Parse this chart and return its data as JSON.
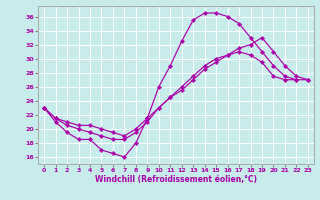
{
  "xlabel": "Windchill (Refroidissement éolien,°C)",
  "bg_color": "#c8ecec",
  "line_color": "#aa00aa",
  "grid_color": "#ffffff",
  "ylim": [
    15.0,
    37.5
  ],
  "xlim": [
    -0.5,
    23.5
  ],
  "yticks": [
    16,
    18,
    20,
    22,
    24,
    26,
    28,
    30,
    32,
    34,
    36
  ],
  "xticks": [
    0,
    1,
    2,
    3,
    4,
    5,
    6,
    7,
    8,
    9,
    10,
    11,
    12,
    13,
    14,
    15,
    16,
    17,
    18,
    19,
    20,
    21,
    22,
    23
  ],
  "curve1_x": [
    0,
    1,
    2,
    3,
    4,
    5,
    6,
    7,
    8,
    9
  ],
  "curve1_y": [
    23.0,
    21.0,
    19.5,
    18.5,
    18.5,
    17.0,
    16.5,
    16.0,
    18.0,
    21.5
  ],
  "curve2_x": [
    9,
    10,
    11,
    12,
    13,
    14,
    15,
    16,
    17,
    18,
    19,
    20,
    21,
    22
  ],
  "curve2_y": [
    21.5,
    26.0,
    29.0,
    32.5,
    35.5,
    36.5,
    36.5,
    36.0,
    35.0,
    33.0,
    31.0,
    29.0,
    27.5,
    27.0
  ],
  "curve3_x": [
    0,
    1,
    2,
    3,
    4,
    5,
    6,
    7,
    8,
    9,
    10,
    11,
    12,
    13,
    14,
    15,
    16,
    17,
    18,
    19,
    20,
    21,
    22,
    23
  ],
  "curve3_y": [
    23.0,
    21.5,
    21.0,
    20.5,
    20.5,
    20.0,
    19.5,
    19.0,
    20.0,
    21.5,
    23.0,
    24.5,
    25.5,
    27.0,
    28.5,
    29.5,
    30.5,
    31.5,
    32.0,
    33.0,
    31.0,
    29.0,
    27.5,
    27.0
  ],
  "curve4_x": [
    0,
    1,
    2,
    3,
    4,
    5,
    6,
    7,
    8,
    9,
    10,
    11,
    12,
    13,
    14,
    15,
    16,
    17,
    18,
    19,
    20,
    21,
    22,
    23
  ],
  "curve4_y": [
    23.0,
    21.5,
    20.5,
    20.0,
    19.5,
    19.0,
    18.5,
    18.5,
    19.5,
    21.0,
    23.0,
    24.5,
    26.0,
    27.5,
    29.0,
    30.0,
    30.5,
    31.0,
    30.5,
    29.5,
    27.5,
    27.0,
    27.0,
    27.0
  ]
}
